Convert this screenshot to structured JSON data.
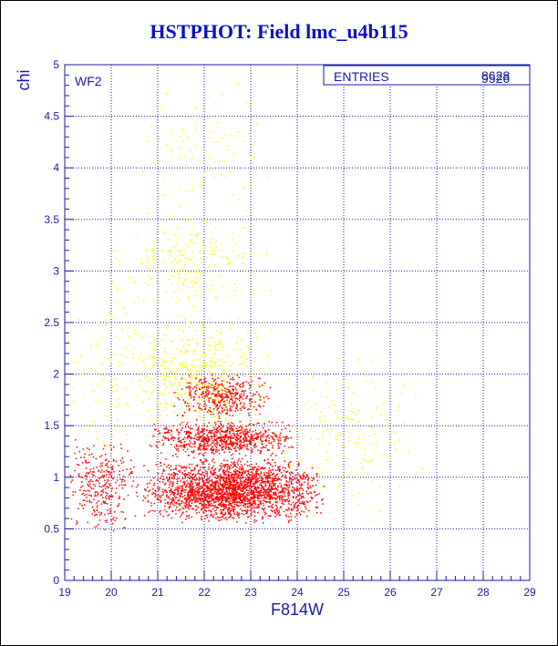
{
  "title": "HSTPHOT: Field lmc_u4b115",
  "panel_label": "WF2",
  "stats": {
    "label": "ENTRIES",
    "value_a": "8628",
    "value_b": "9526"
  },
  "colors": {
    "axis": "#1a1aa8",
    "grid": "#1a1aa8",
    "bright": "#ff0000",
    "faint": "#ffff00",
    "title": "#0a10c8"
  },
  "chart_data": {
    "type": "scatter",
    "title": "HSTPHOT: Field lmc_u4b115",
    "xlabel": "F814W",
    "ylabel": "chi",
    "xlim": [
      19,
      29
    ],
    "ylim": [
      0,
      5
    ],
    "xticks": [
      "19",
      "20",
      "21",
      "22",
      "23",
      "24",
      "25",
      "26",
      "27",
      "28",
      "29"
    ],
    "yticks": [
      "0",
      "0.5",
      "1",
      "1.5",
      "2",
      "2.5",
      "3",
      "3.5",
      "4",
      "4.5",
      "5"
    ],
    "grid": true,
    "series": [
      {
        "color": "#ff0000",
        "count": 8628,
        "clusters": [
          {
            "x": [
              19.0,
              20.6
            ],
            "y": [
              0.45,
              1.4
            ],
            "share": 0.08
          },
          {
            "x": [
              20.6,
              24.6
            ],
            "y": [
              0.55,
              1.2
            ],
            "share": 0.62
          },
          {
            "x": [
              20.8,
              24.0
            ],
            "y": [
              1.2,
              1.55
            ],
            "share": 0.2
          },
          {
            "x": [
              21.3,
              23.5
            ],
            "y": [
              1.55,
              2.0
            ],
            "share": 0.1
          }
        ]
      },
      {
        "color": "#ffff00",
        "count": 9526,
        "clusters": [
          {
            "x": [
              20.2,
              23.5
            ],
            "y": [
              1.4,
              2.6
            ],
            "share": 0.45
          },
          {
            "x": [
              20.0,
              23.5
            ],
            "y": [
              2.6,
              3.6
            ],
            "share": 0.2
          },
          {
            "x": [
              20.5,
              23.5
            ],
            "y": [
              3.6,
              4.9
            ],
            "share": 0.08
          },
          {
            "x": [
              19.0,
              21.0
            ],
            "y": [
              1.0,
              3.0
            ],
            "share": 0.1
          },
          {
            "x": [
              23.5,
              26.8
            ],
            "y": [
              0.5,
              2.2
            ],
            "share": 0.17
          }
        ]
      }
    ]
  }
}
